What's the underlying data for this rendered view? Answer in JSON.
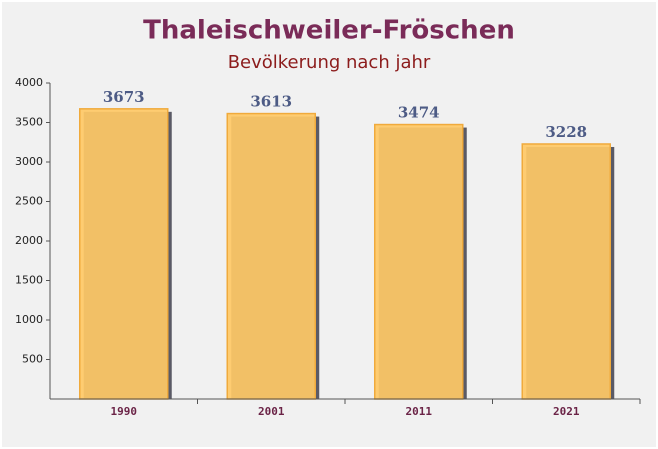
{
  "chart_data": {
    "type": "bar",
    "title": "Thaleischweiler-Fröschen",
    "subtitle": "Bevölkerung nach jahr",
    "categories": [
      "1990",
      "2001",
      "2011",
      "2021"
    ],
    "values": [
      3673,
      3613,
      3474,
      3228
    ],
    "color": "#ffc966",
    "ylim": [
      0,
      4000
    ],
    "yticks": [
      500,
      1000,
      1500,
      2000,
      2500,
      3000,
      3500,
      4000
    ],
    "grid": false
  }
}
